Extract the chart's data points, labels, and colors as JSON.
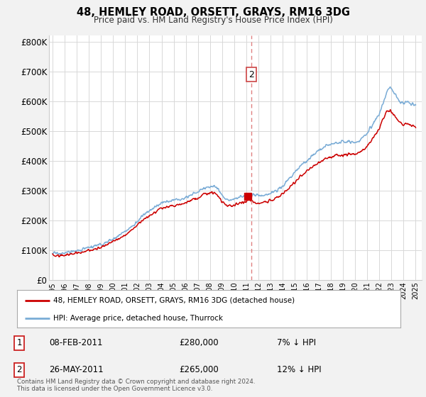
{
  "title": "48, HEMLEY ROAD, ORSETT, GRAYS, RM16 3DG",
  "subtitle": "Price paid vs. HM Land Registry's House Price Index (HPI)",
  "ylabel_ticks": [
    "£0",
    "£100K",
    "£200K",
    "£300K",
    "£400K",
    "£500K",
    "£600K",
    "£700K",
    "£800K"
  ],
  "ytick_values": [
    0,
    100000,
    200000,
    300000,
    400000,
    500000,
    600000,
    700000,
    800000
  ],
  "ylim": [
    0,
    820000
  ],
  "xlim_start": 1994.7,
  "xlim_end": 2025.5,
  "hpi_color": "#7aacd6",
  "price_color": "#cc0000",
  "vline_color": "#e08080",
  "transaction1_year": 2011.1,
  "transaction1_price": 280000,
  "transaction2_year": 2011.42,
  "transaction2_price": 265000,
  "legend_entry1": "48, HEMLEY ROAD, ORSETT, GRAYS, RM16 3DG (detached house)",
  "legend_entry2": "HPI: Average price, detached house, Thurrock",
  "table_rows": [
    {
      "num": "1",
      "date": "08-FEB-2011",
      "price": "£280,000",
      "pct": "7% ↓ HPI"
    },
    {
      "num": "2",
      "date": "26-MAY-2011",
      "price": "£265,000",
      "pct": "12% ↓ HPI"
    }
  ],
  "footnote": "Contains HM Land Registry data © Crown copyright and database right 2024.\nThis data is licensed under the Open Government Licence v3.0.",
  "background_color": "#f2f2f2",
  "plot_bg_color": "#ffffff",
  "grid_color": "#d8d8d8",
  "noise_seed": 17
}
